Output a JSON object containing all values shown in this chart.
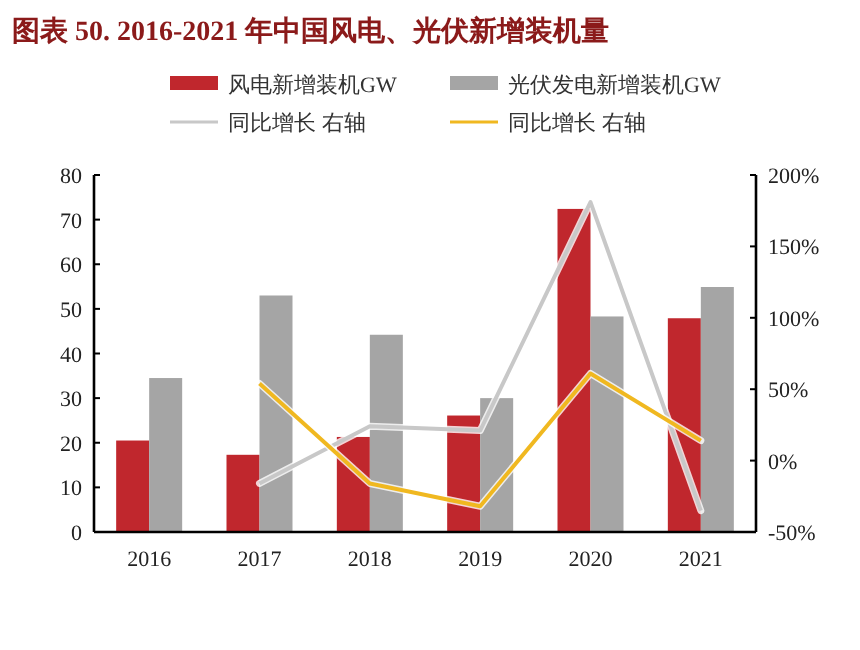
{
  "chart_data": {
    "type": "bar",
    "title": "图表 50. 2016-2021 年中国风电、光伏新增装机量",
    "categories": [
      "2016",
      "2017",
      "2018",
      "2019",
      "2020",
      "2021"
    ],
    "series": [
      {
        "name": "风电新增装机GW",
        "color": "#c0272d",
        "values": [
          20.5,
          17.3,
          21.3,
          26.1,
          72.4,
          47.9
        ]
      },
      {
        "name": "光伏发电新增装机GW",
        "color": "#a5a5a5",
        "values": [
          34.5,
          53,
          44.2,
          30,
          48.3,
          54.9
        ]
      },
      {
        "name": "同比增长 右轴",
        "type": "line",
        "axis": "y2",
        "color": "#c8c8c8",
        "values": [
          null,
          -16,
          24,
          21,
          181,
          -35
        ]
      },
      {
        "name": "同比增长 右轴",
        "type": "line",
        "axis": "y2",
        "color": "#f0b820",
        "values": [
          null,
          54,
          -16,
          -32,
          61,
          14
        ]
      }
    ],
    "ylim": [
      0,
      80
    ],
    "yticks": [
      0,
      10,
      20,
      30,
      40,
      50,
      60,
      70,
      80
    ],
    "y2lim": [
      -50,
      200
    ],
    "y2ticks": [
      {
        "value": -50,
        "label": "-50%"
      },
      {
        "value": 0,
        "label": "0%"
      },
      {
        "value": 50,
        "label": "50%"
      },
      {
        "value": 100,
        "label": "100%"
      },
      {
        "value": 150,
        "label": "150%"
      },
      {
        "value": 200,
        "label": "200%"
      }
    ],
    "legend": "top"
  }
}
